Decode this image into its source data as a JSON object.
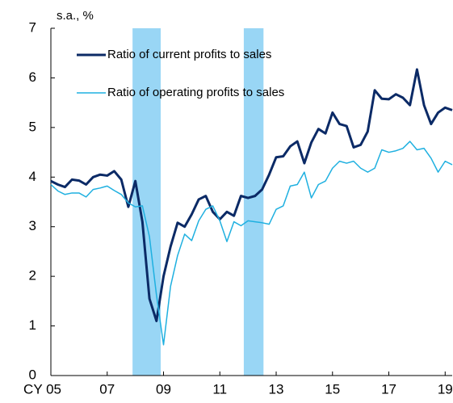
{
  "chart_data": {
    "type": "line",
    "y_label": "s.a., %",
    "x": [
      2005,
      2005.25,
      2005.5,
      2005.75,
      2006,
      2006.25,
      2006.5,
      2006.75,
      2007,
      2007.25,
      2007.5,
      2007.75,
      2008,
      2008.25,
      2008.5,
      2008.75,
      2009,
      2009.25,
      2009.5,
      2009.75,
      2010,
      2010.25,
      2010.5,
      2010.75,
      2011,
      2011.25,
      2011.5,
      2011.75,
      2012,
      2012.25,
      2012.5,
      2012.75,
      2013,
      2013.25,
      2013.5,
      2013.75,
      2014,
      2014.25,
      2014.5,
      2014.75,
      2015,
      2015.25,
      2015.5,
      2015.75,
      2016,
      2016.25,
      2016.5,
      2016.75,
      2017,
      2017.25,
      2017.5,
      2017.75,
      2018,
      2018.25,
      2018.5,
      2018.75,
      2019,
      2019.25
    ],
    "series": [
      {
        "name": "Ratio of current profits to sales",
        "color": "#0b2a66",
        "width": 3,
        "values": [
          3.92,
          3.85,
          3.8,
          3.95,
          3.93,
          3.85,
          4.0,
          4.05,
          4.03,
          4.12,
          3.95,
          3.4,
          3.92,
          3.1,
          1.55,
          1.1,
          2.0,
          2.6,
          3.08,
          3.0,
          3.25,
          3.55,
          3.62,
          3.3,
          3.15,
          3.3,
          3.22,
          3.62,
          3.58,
          3.62,
          3.75,
          4.05,
          4.4,
          4.42,
          4.62,
          4.72,
          4.28,
          4.7,
          4.97,
          4.88,
          5.3,
          5.07,
          5.03,
          4.6,
          4.65,
          4.92,
          5.75,
          5.58,
          5.57,
          5.67,
          5.6,
          5.45,
          6.17,
          5.45,
          5.07,
          5.3,
          5.4,
          5.35
        ]
      },
      {
        "name": "Ratio of operating profits to sales",
        "color": "#1fb0e0",
        "width": 1.5,
        "values": [
          3.85,
          3.72,
          3.65,
          3.68,
          3.68,
          3.6,
          3.75,
          3.78,
          3.82,
          3.73,
          3.65,
          3.48,
          3.4,
          3.42,
          2.8,
          1.62,
          0.62,
          1.8,
          2.42,
          2.85,
          2.72,
          3.12,
          3.35,
          3.42,
          3.12,
          2.7,
          3.1,
          3.02,
          3.12,
          3.1,
          3.08,
          3.05,
          3.35,
          3.42,
          3.82,
          3.85,
          4.1,
          3.58,
          3.85,
          3.92,
          4.18,
          4.32,
          4.28,
          4.32,
          4.18,
          4.1,
          4.18,
          4.55,
          4.5,
          4.53,
          4.58,
          4.72,
          4.55,
          4.58,
          4.38,
          4.1,
          4.32,
          4.25
        ]
      }
    ],
    "shaded_ranges": [
      [
        2007.9,
        2008.9
      ],
      [
        2011.85,
        2012.55
      ]
    ],
    "shade_color": "#99d6f5",
    "xlim": [
      2005,
      2019.25
    ],
    "xticks": [
      {
        "value": 2005,
        "label": "CY 05"
      },
      {
        "value": 2007,
        "label": "07"
      },
      {
        "value": 2009,
        "label": "09"
      },
      {
        "value": 2011,
        "label": "11"
      },
      {
        "value": 2013,
        "label": "13"
      },
      {
        "value": 2015,
        "label": "15"
      },
      {
        "value": 2017,
        "label": "17"
      },
      {
        "value": 2019,
        "label": "19"
      }
    ],
    "ylim": [
      0,
      7
    ],
    "yticks": [
      0,
      1,
      2,
      3,
      4,
      5,
      6,
      7
    ],
    "grid": false,
    "legend": "upper left"
  }
}
